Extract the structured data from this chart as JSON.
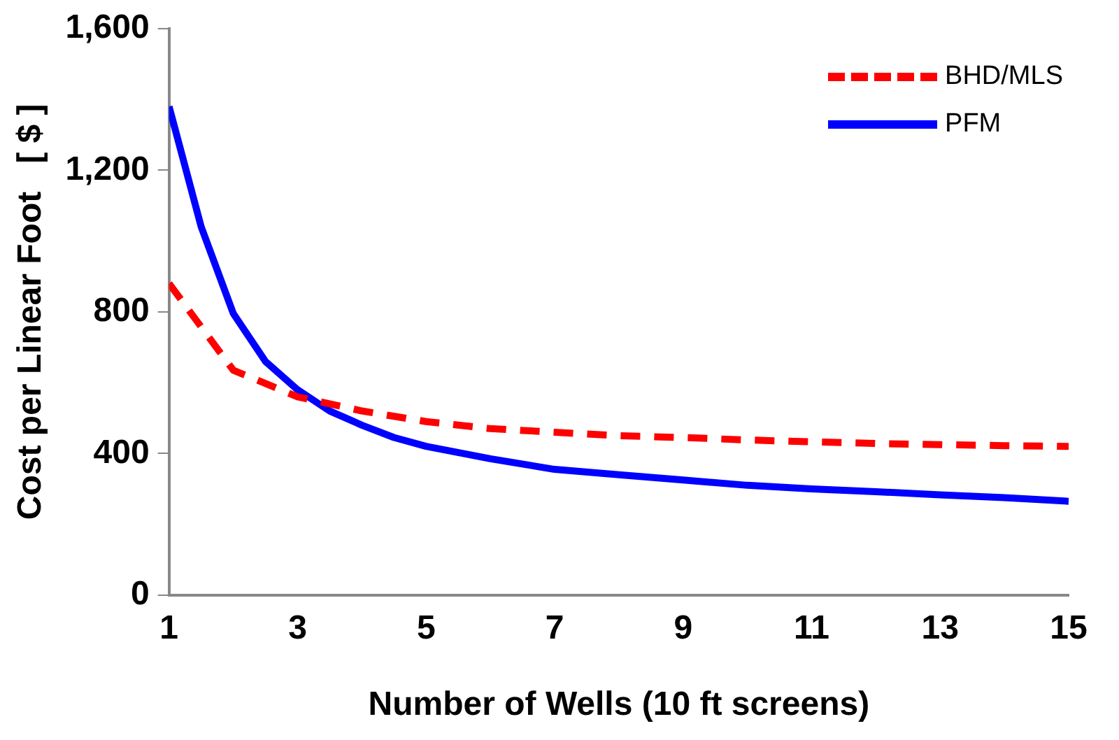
{
  "chart_data": {
    "type": "line",
    "xlabel": "Number of Wells (10 ft screens)",
    "ylabel": "Cost per Linear Foot   [ $ ]",
    "series": [
      {
        "name": "BHD/MLS",
        "color": "#ff0000",
        "line_style": "dashed",
        "x": [
          1,
          2,
          3,
          4,
          5,
          6,
          7,
          8,
          9,
          10,
          11,
          12,
          13,
          14,
          15
        ],
        "values": [
          880,
          635,
          560,
          520,
          490,
          470,
          460,
          450,
          445,
          438,
          433,
          428,
          425,
          422,
          420
        ]
      },
      {
        "name": "PFM",
        "color": "#0000ff",
        "line_style": "solid",
        "x": [
          1,
          1.5,
          2,
          2.5,
          3,
          3.5,
          4,
          4.5,
          5,
          6,
          7,
          8,
          9,
          10,
          11,
          12,
          13,
          14,
          15
        ],
        "values": [
          1380,
          1040,
          795,
          660,
          580,
          520,
          480,
          445,
          420,
          385,
          355,
          340,
          325,
          310,
          300,
          292,
          283,
          275,
          265
        ]
      }
    ],
    "xlim": [
      1,
      15
    ],
    "xticks": [
      1,
      3,
      5,
      7,
      9,
      11,
      13,
      15
    ],
    "ylim": [
      0,
      1600
    ],
    "yticks": [
      {
        "value": 0,
        "label": "0"
      },
      {
        "value": 400,
        "label": "400"
      },
      {
        "value": 800,
        "label": "800"
      },
      {
        "value": 1200,
        "label": "1,200"
      },
      {
        "value": 1600,
        "label": "1,600"
      }
    ],
    "grid": false,
    "legend": "top right",
    "marker": "none"
  }
}
